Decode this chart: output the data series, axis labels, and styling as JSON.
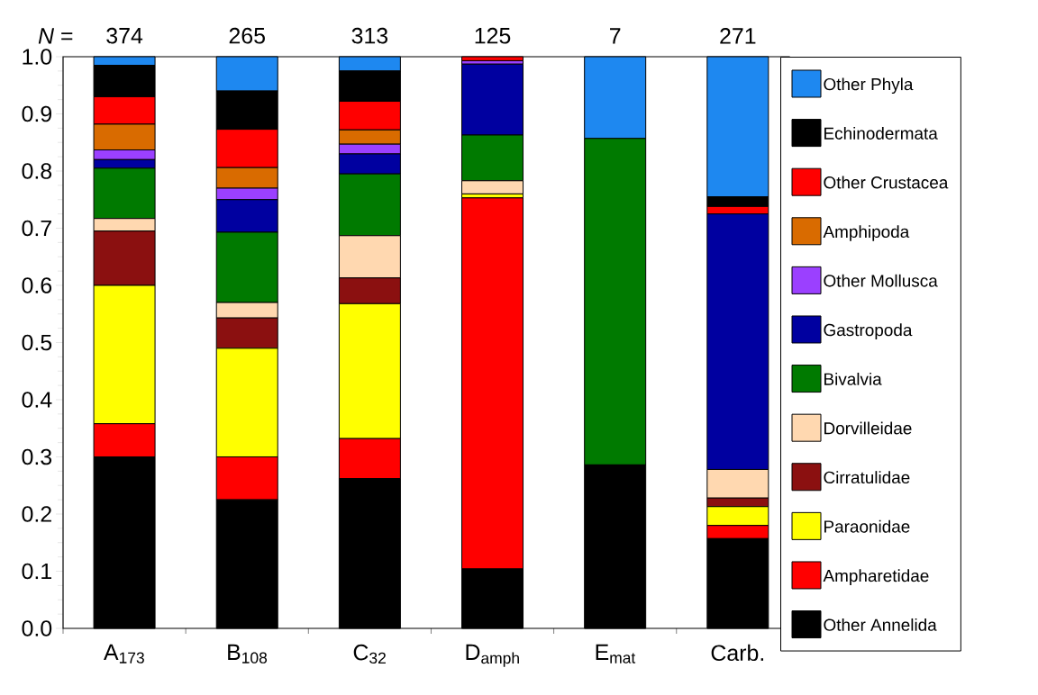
{
  "chart_data": {
    "type": "bar",
    "stacked": true,
    "categories": [
      "A$_{173}$",
      "B$_{108}$",
      "C$_{32}$",
      "D$_{amph}$",
      "E$_{mat}$",
      "Carb."
    ],
    "series": [
      {
        "name": "Other Annelida",
        "color": "#000000",
        "values": [
          0.3,
          0.225,
          0.262,
          0.104,
          0.286,
          0.157
        ]
      },
      {
        "name": "Ampharetidae",
        "color": "#ff0000",
        "values": [
          0.058,
          0.075,
          0.07,
          0.649,
          0,
          0.023
        ]
      },
      {
        "name": "Paraonidae",
        "color": "#ffff00",
        "values": [
          0.242,
          0.19,
          0.236,
          0.007,
          0,
          0.033
        ]
      },
      {
        "name": "Cirratulidae",
        "color": "#8b1010",
        "values": [
          0.095,
          0.053,
          0.045,
          0,
          0,
          0.015
        ]
      },
      {
        "name": "Dorvilleidae",
        "color": "#ffd8b0",
        "values": [
          0.022,
          0.027,
          0.074,
          0.023,
          0,
          0.05
        ]
      },
      {
        "name": "Bivalvia",
        "color": "#007a00",
        "values": [
          0.088,
          0.123,
          0.108,
          0.08,
          0.571,
          0
        ]
      },
      {
        "name": "Gastropoda",
        "color": "#0000a0",
        "values": [
          0.015,
          0.057,
          0.035,
          0.124,
          0,
          0.447
        ]
      },
      {
        "name": "Other Mollusca",
        "color": "#9b40ff",
        "values": [
          0.017,
          0.02,
          0.017,
          0.006,
          0,
          0
        ]
      },
      {
        "name": "Amphipoda",
        "color": "#d96b00",
        "values": [
          0.045,
          0.036,
          0.025,
          0,
          0,
          0
        ]
      },
      {
        "name": "Other Crustacea",
        "color": "#ff0000",
        "values": [
          0.048,
          0.067,
          0.05,
          0.007,
          0,
          0.013
        ]
      },
      {
        "name": "Echinodermata",
        "color": "#000000",
        "values": [
          0.055,
          0.067,
          0.053,
          0,
          0,
          0.017
        ]
      },
      {
        "name": "Other Phyla",
        "color": "#1e88f0",
        "values": [
          0.015,
          0.06,
          0.025,
          0,
          0.143,
          0.245
        ]
      }
    ],
    "ylim": [
      0,
      1.0
    ],
    "yticks": [
      {
        "value": 0,
        "label": "0.0"
      },
      0.1,
      0.2,
      0.3,
      0.4,
      0.5,
      0.6,
      0.7,
      0.8,
      0.9,
      {
        "value": 1.0,
        "label": "1.0"
      }
    ],
    "legend": "right",
    "annotations": [
      "*N* =",
      "374",
      "265",
      "313",
      "125",
      "7",
      "271"
    ]
  }
}
